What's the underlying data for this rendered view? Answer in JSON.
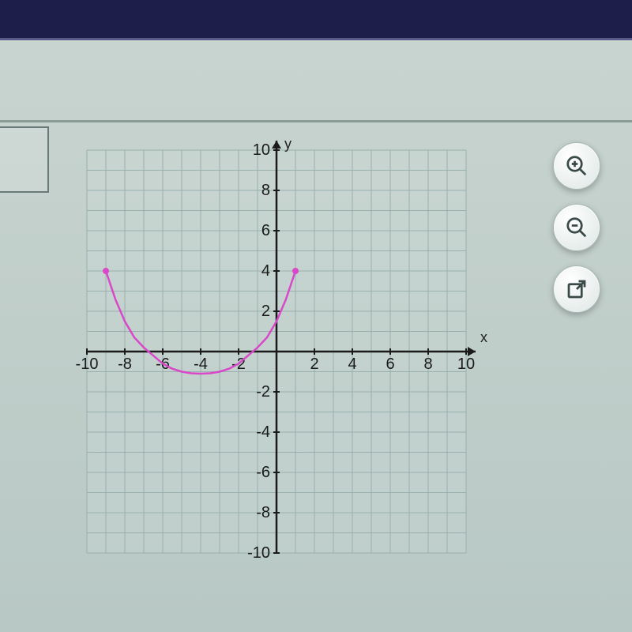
{
  "chart": {
    "type": "line",
    "xlabel": "x",
    "ylabel": "y",
    "xlim": [
      -10,
      10
    ],
    "ylim": [
      -10,
      10
    ],
    "xtick_step": 2,
    "ytick_step": 2,
    "grid_step": 1,
    "grid_color": "#9ab0ae",
    "axis_color": "#1a1a1a",
    "background_color": "#d0e0dc",
    "curve_color": "#d848c8",
    "endpoint_color": "#d848c8",
    "curve_width": 2.5,
    "endpoint_radius": 4,
    "curve_points": [
      [
        -9,
        4
      ],
      [
        -8.5,
        2.6
      ],
      [
        -8,
        1.5
      ],
      [
        -7.5,
        0.7
      ],
      [
        -7,
        0.2
      ],
      [
        -6.5,
        -0.2
      ],
      [
        -6,
        -0.6
      ],
      [
        -5.5,
        -0.85
      ],
      [
        -5,
        -1
      ],
      [
        -4.5,
        -1.08
      ],
      [
        -4,
        -1.1
      ],
      [
        -3.5,
        -1.08
      ],
      [
        -3,
        -1
      ],
      [
        -2.5,
        -0.85
      ],
      [
        -2,
        -0.6
      ],
      [
        -1.5,
        -0.2
      ],
      [
        -1,
        0.2
      ],
      [
        -0.5,
        0.7
      ],
      [
        0,
        1.5
      ],
      [
        0.5,
        2.6
      ],
      [
        1,
        4
      ]
    ],
    "endpoints": [
      [
        -9,
        4
      ],
      [
        1,
        4
      ]
    ],
    "label_fontsize": 20,
    "tick_fontsize": 20
  },
  "toolbar": {
    "zoom_in": "zoom-in",
    "zoom_out": "zoom-out",
    "popout": "popout"
  }
}
